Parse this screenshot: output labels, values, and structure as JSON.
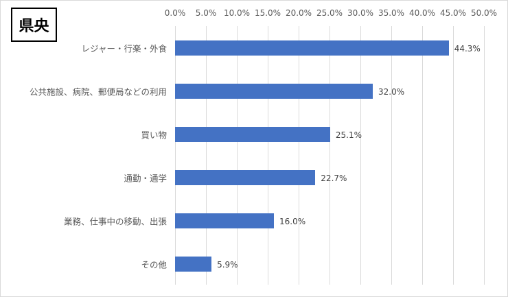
{
  "chart_data": {
    "type": "bar",
    "orientation": "horizontal",
    "title": "県央",
    "categories": [
      "レジャー・行楽・外食",
      "公共施設、病院、郵便局などの利用",
      "買い物",
      "通勤・通学",
      "業務、仕事中の移動、出張",
      "その他"
    ],
    "values": [
      44.3,
      32.0,
      25.1,
      22.7,
      16.0,
      5.9
    ],
    "value_labels": [
      "44.3%",
      "32.0%",
      "25.1%",
      "22.7%",
      "16.0%",
      "5.9%"
    ],
    "xlabel": "",
    "ylabel": "",
    "xlim": [
      0,
      50
    ],
    "x_ticks": [
      "0.0%",
      "5.0%",
      "10.0%",
      "15.0%",
      "20.0%",
      "25.0%",
      "30.0%",
      "35.0%",
      "40.0%",
      "45.0%",
      "50.0%"
    ],
    "x_axis_position": "top",
    "grid": true,
    "legend": null,
    "bar_color": "#4472c4"
  }
}
